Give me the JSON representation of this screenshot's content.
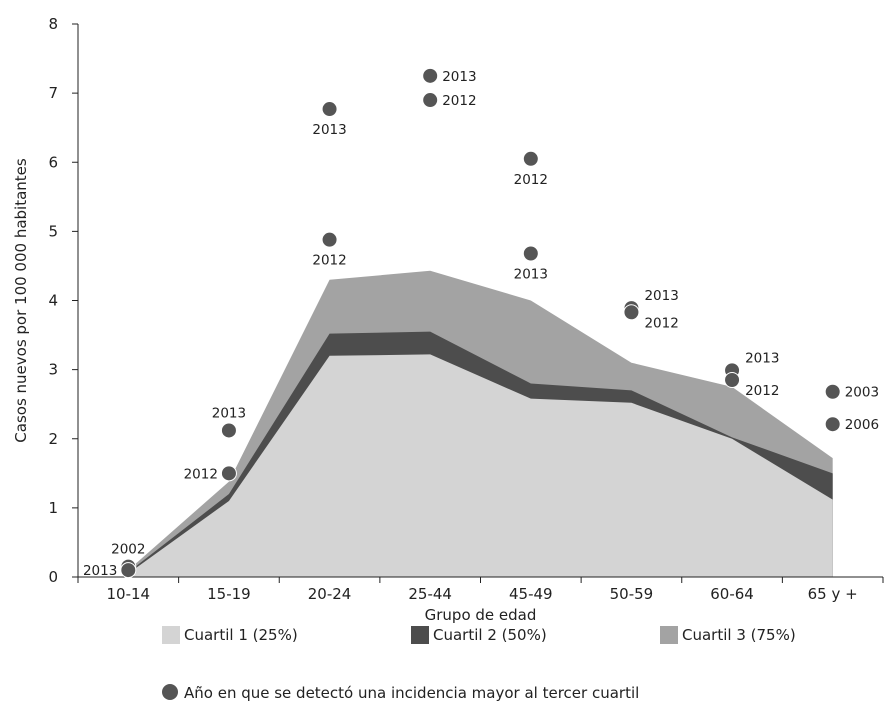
{
  "chart_data": {
    "type": "area",
    "xlabel": "Grupo de edad",
    "ylabel": "Casos nuevos por 100 000 habitantes",
    "ylim": [
      0,
      8
    ],
    "yticks": [
      0,
      1,
      2,
      3,
      4,
      5,
      6,
      7,
      8
    ],
    "categories": [
      "10-14",
      "15-19",
      "20-24",
      "25-44",
      "45-49",
      "50-59",
      "60-64",
      "65 y +"
    ],
    "series": [
      {
        "name": "Cuartil 1 (25%)",
        "color": "#d4d4d4",
        "values": [
          0.05,
          1.1,
          3.2,
          3.22,
          2.58,
          2.52,
          2.0,
          1.12
        ]
      },
      {
        "name": "Cuartil 2 (50%)",
        "color": "#4d4d4d",
        "values": [
          0.07,
          1.2,
          3.52,
          3.55,
          2.8,
          2.7,
          2.02,
          1.5
        ]
      },
      {
        "name": "Cuartil 3 (75%)",
        "color": "#a3a3a3",
        "values": [
          0.1,
          1.38,
          4.3,
          4.43,
          4.0,
          3.1,
          2.75,
          1.72
        ]
      }
    ],
    "points": [
      {
        "category": "10-14",
        "value": 0.15,
        "label": "2002",
        "label_pos": "above"
      },
      {
        "category": "10-14",
        "value": 0.1,
        "label": "2013",
        "label_pos": "left"
      },
      {
        "category": "15-19",
        "value": 2.12,
        "label": "2013",
        "label_pos": "above"
      },
      {
        "category": "15-19",
        "value": 1.5,
        "label": "2012",
        "label_pos": "left"
      },
      {
        "category": "20-24",
        "value": 6.77,
        "label": "2013",
        "label_pos": "below"
      },
      {
        "category": "20-24",
        "value": 4.88,
        "label": "2012",
        "label_pos": "below"
      },
      {
        "category": "25-44",
        "value": 7.25,
        "label": "2013",
        "label_pos": "right"
      },
      {
        "category": "25-44",
        "value": 6.9,
        "label": "2012",
        "label_pos": "right"
      },
      {
        "category": "45-49",
        "value": 6.05,
        "label": "2012",
        "label_pos": "below"
      },
      {
        "category": "45-49",
        "value": 4.68,
        "label": "2013",
        "label_pos": "below"
      },
      {
        "category": "50-59",
        "value": 3.89,
        "label": "2013",
        "label_pos": "right-up"
      },
      {
        "category": "50-59",
        "value": 3.83,
        "label": "2012",
        "label_pos": "right-down"
      },
      {
        "category": "60-64",
        "value": 2.99,
        "label": "2013",
        "label_pos": "right-up"
      },
      {
        "category": "60-64",
        "value": 2.85,
        "label": "2012",
        "label_pos": "right-down"
      },
      {
        "category": "65 y +",
        "value": 2.68,
        "label": "2003",
        "label_pos": "right"
      },
      {
        "category": "65 y +",
        "value": 2.21,
        "label": "2006",
        "label_pos": "right"
      }
    ],
    "point_legend": "Año en que se detectó una incidencia mayor al tercer cuartil",
    "point_color": "#555555",
    "legend_placement": "bottom",
    "grid": false
  }
}
